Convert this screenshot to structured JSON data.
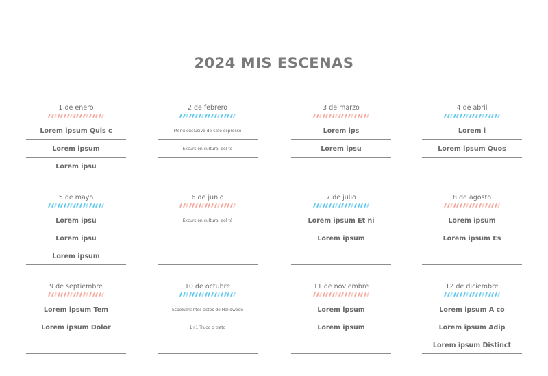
{
  "title": "2024 MIS ESCENAS",
  "colors": {
    "pink": "#f4a79a",
    "blue": "#5ec8f0"
  },
  "months": [
    {
      "date": "1 de enero",
      "stripe": "pink",
      "entries": [
        "Lorem ipsum Quis c",
        "Lorem ipsum",
        "Lorem ipsu"
      ]
    },
    {
      "date": "2 de febrero",
      "stripe": "blue",
      "small": true,
      "entries": [
        "Menú exclusivo de café espresso",
        "Excursión cultural del té",
        ""
      ]
    },
    {
      "date": "3 de marzo",
      "stripe": "pink",
      "entries": [
        "Lorem ips",
        "Lorem ipsu",
        ""
      ]
    },
    {
      "date": "4 de abril",
      "stripe": "blue",
      "entries": [
        "Lorem i",
        "Lorem ipsum Quos",
        ""
      ]
    },
    {
      "date": "5 de mayo",
      "stripe": "blue",
      "entries": [
        "Lorem ipsu",
        "Lorem ipsu",
        "Lorem ipsum"
      ]
    },
    {
      "date": "6 de junio",
      "stripe": "pink",
      "small": true,
      "entries": [
        "Excursión cultural del té",
        "",
        ""
      ]
    },
    {
      "date": "7 de julio",
      "stripe": "blue",
      "entries": [
        "Lorem ipsum Et ni",
        "Lorem ipsum",
        ""
      ]
    },
    {
      "date": "8 de agosto",
      "stripe": "pink",
      "entries": [
        "Lorem ipsum",
        "Lorem ipsum Es",
        ""
      ]
    },
    {
      "date": "9 de septiembre",
      "stripe": "pink",
      "entries": [
        "Lorem ipsum Tem",
        "Lorem ipsum Dolor",
        ""
      ]
    },
    {
      "date": "10 de octubre",
      "stripe": "blue",
      "small": true,
      "entries": [
        "Espeluznantes actos de Halloween",
        "1+1 Truco o trato",
        ""
      ]
    },
    {
      "date": "11 de noviembre",
      "stripe": "pink",
      "entries": [
        "Lorem ipsum",
        "Lorem ipsum",
        ""
      ]
    },
    {
      "date": "12 de diciembre",
      "stripe": "blue",
      "entries": [
        "Lorem ipsum A co",
        "Lorem ipsum Adip",
        "Lorem ipsum Distinct"
      ]
    }
  ]
}
